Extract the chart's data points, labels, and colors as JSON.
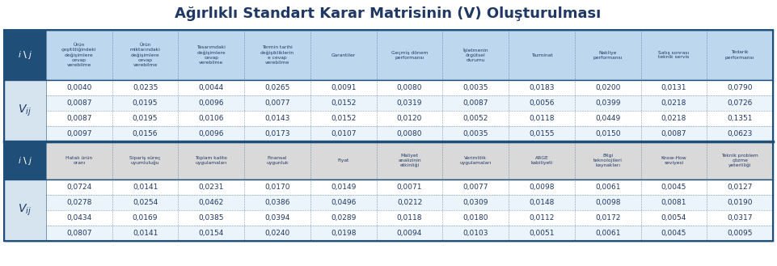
{
  "title": "Ağırlıklı Standart Karar Matrisinin (V) Oluşturulması",
  "title_color": "#1F3864",
  "bg_color": "#FFFFFF",
  "dark_blue": "#1F4E79",
  "light_blue_hdr": "#BDD7EE",
  "light_gray_hdr": "#D9D9D9",
  "vij_bg": "#D6E4F0",
  "white": "#FFFFFF",
  "text_dark": "#1F3864",
  "row_alt1": "#FFFFFF",
  "row_alt2": "#EBF3FB",
  "top_headers1": [
    "Ürün\nçeşitliliğindeki\ndeğişimlere\ncevap\nverebilme",
    "Ürün\nmiktarındaki\ndeğişimlere\ncevap\nverebilme",
    "Tasarımdaki\ndeğişimlere\ncevap\nverebilme",
    "Termin tarihi\ndeğişikliklerin\ne cevap\nverebilme",
    "Garantiler",
    "Geçmiş dönem\nperformansı",
    "İşletmenin\nörgütsel\ndurumu",
    "Tazminat",
    "Nakliye\nperformansı",
    "Satış sonrası\nteknik servis",
    "Tedarik\nperformansı"
  ],
  "top_data1": [
    [
      "0,0040",
      "0,0235",
      "0,0044",
      "0,0265",
      "0,0091",
      "0,0080",
      "0,0035",
      "0,0183",
      "0,0200",
      "0,0131",
      "0,0790"
    ],
    [
      "0,0087",
      "0,0195",
      "0,0096",
      "0,0077",
      "0,0152",
      "0,0319",
      "0,0087",
      "0,0056",
      "0,0399",
      "0,0218",
      "0,0726"
    ],
    [
      "0,0087",
      "0,0195",
      "0,0106",
      "0,0143",
      "0,0152",
      "0,0120",
      "0,0052",
      "0,0118",
      "0,0449",
      "0,0218",
      "0,1351"
    ],
    [
      "0,0097",
      "0,0156",
      "0,0096",
      "0,0173",
      "0,0107",
      "0,0080",
      "0,0035",
      "0,0155",
      "0,0150",
      "0,0087",
      "0,0623"
    ]
  ],
  "top_headers2": [
    "Hatalı ürün\noranı",
    "Sipariş süreç\nuyumluluğu",
    "Toplam kalite\nuygulamaları",
    "Finansal\nuygunluk",
    "Fiyat",
    "Maliyet\nanalizinin\netkinliği",
    "Verimlilik\nuygulamaları",
    "ARGE\nkabiliyeti",
    "Bilgi\nteknolojileri\nkaynakları",
    "Know-How\nseviyesi",
    "Teknik problem\nçözme\nyeterliliği"
  ],
  "top_data2": [
    [
      "0,0724",
      "0,0141",
      "0,0231",
      "0,0170",
      "0,0149",
      "0,0071",
      "0,0077",
      "0,0098",
      "0,0061",
      "0,0045",
      "0,0127"
    ],
    [
      "0,0278",
      "0,0254",
      "0,0462",
      "0,0386",
      "0,0496",
      "0,0212",
      "0,0309",
      "0,0148",
      "0,0098",
      "0,0081",
      "0,0190"
    ],
    [
      "0,0434",
      "0,0169",
      "0,0385",
      "0,0394",
      "0,0289",
      "0,0118",
      "0,0180",
      "0,0112",
      "0,0172",
      "0,0054",
      "0,0317"
    ],
    [
      "0,0807",
      "0,0141",
      "0,0154",
      "0,0240",
      "0,0198",
      "0,0094",
      "0,0103",
      "0,0051",
      "0,0061",
      "0,0045",
      "0,0095"
    ]
  ]
}
